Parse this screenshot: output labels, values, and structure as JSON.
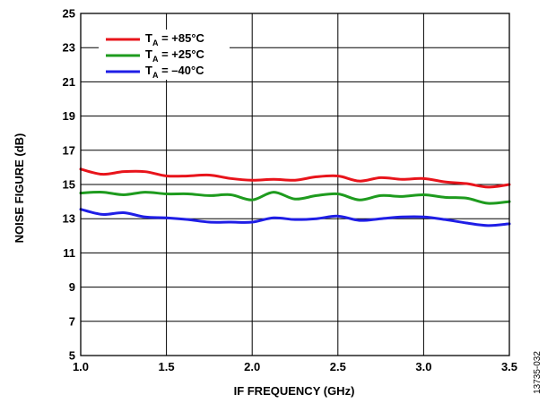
{
  "chart_data": {
    "type": "line",
    "xlabel": "IF FREQUENCY (GHz)",
    "ylabel": "NOISE FIGURE (dB)",
    "xlim": [
      1.0,
      3.5
    ],
    "ylim": [
      5,
      25
    ],
    "xticks": [
      "1.0",
      "1.5",
      "2.0",
      "2.5",
      "3.0",
      "3.5"
    ],
    "yticks": [
      "5",
      "7",
      "9",
      "11",
      "13",
      "15",
      "17",
      "19",
      "21",
      "23",
      "25"
    ],
    "grid": true,
    "legend_position": "top-left",
    "x": [
      1.0,
      1.125,
      1.25,
      1.375,
      1.5,
      1.625,
      1.75,
      1.875,
      2.0,
      2.125,
      2.25,
      2.375,
      2.5,
      2.625,
      2.75,
      2.875,
      3.0,
      3.125,
      3.25,
      3.375,
      3.5
    ],
    "series": [
      {
        "name_main": "T",
        "name_sub": "A",
        "name_rest": " = +85°C",
        "color": "#e8141b",
        "values": [
          15.9,
          15.6,
          15.75,
          15.75,
          15.5,
          15.5,
          15.55,
          15.35,
          15.25,
          15.3,
          15.25,
          15.45,
          15.5,
          15.2,
          15.4,
          15.3,
          15.35,
          15.15,
          15.05,
          14.85,
          15.0
        ]
      },
      {
        "name_main": "T",
        "name_sub": "A",
        "name_rest": " = +25°C",
        "color": "#1e9b1e",
        "values": [
          14.5,
          14.55,
          14.4,
          14.55,
          14.45,
          14.45,
          14.35,
          14.4,
          14.1,
          14.55,
          14.15,
          14.35,
          14.45,
          14.1,
          14.35,
          14.3,
          14.4,
          14.25,
          14.2,
          13.9,
          14.0
        ]
      },
      {
        "name_main": "T",
        "name_sub": "A",
        "name_rest": " = –40°C",
        "color": "#1f1ee6",
        "values": [
          13.55,
          13.25,
          13.35,
          13.1,
          13.05,
          12.95,
          12.8,
          12.8,
          12.8,
          13.05,
          12.95,
          13.0,
          13.15,
          12.9,
          13.0,
          13.1,
          13.1,
          12.95,
          12.75,
          12.6,
          12.7
        ]
      }
    ]
  },
  "figure_id": "13735-032"
}
